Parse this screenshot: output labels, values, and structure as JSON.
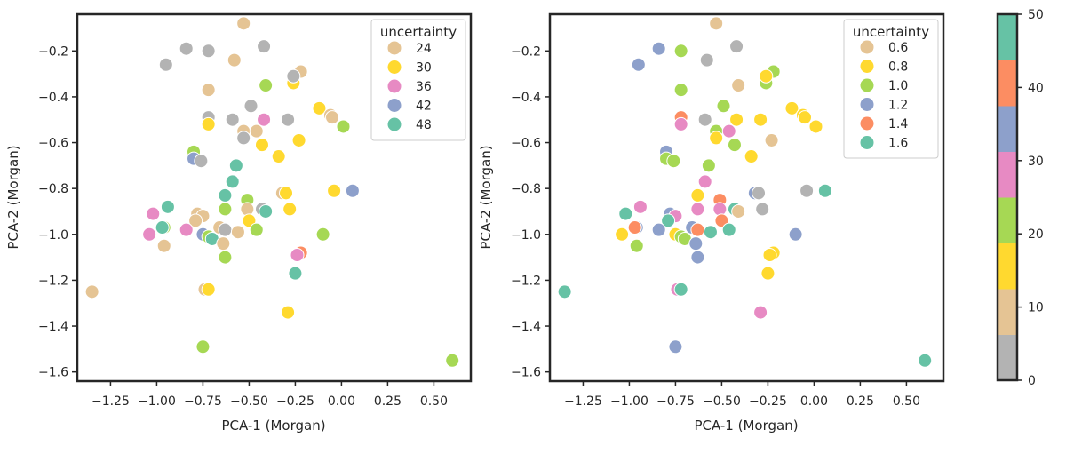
{
  "chart_data": [
    {
      "type": "scatter",
      "xlabel": "PCA-1 (Morgan)",
      "ylabel": "PCA-2 (Morgan)",
      "xlim": [
        -1.43,
        0.7
      ],
      "ylim": [
        -1.64,
        -0.04
      ],
      "xticks": [
        "-1.25",
        "-1.00",
        "-0.75",
        "-0.50",
        "-0.25",
        "0.00",
        "0.25",
        "0.50"
      ],
      "yticks": [
        "-0.2",
        "-0.4",
        "-0.6",
        "-0.8",
        "-1.0",
        "-1.2",
        "-1.4",
        "-1.6"
      ],
      "legend": {
        "title": "uncertainty",
        "entries": [
          {
            "label": "24",
            "color": "#e5c494"
          },
          {
            "label": "30",
            "color": "#ffd92f"
          },
          {
            "label": "36",
            "color": "#e78ac3"
          },
          {
            "label": "42",
            "color": "#8da0cb"
          },
          {
            "label": "48",
            "color": "#66c2a5"
          }
        ]
      }
    },
    {
      "type": "scatter",
      "xlabel": "PCA-1 (Morgan)",
      "ylabel": "PCA-2 (Morgan)",
      "xlim": [
        -1.43,
        0.7
      ],
      "ylim": [
        -1.64,
        -0.04
      ],
      "xticks": [
        "-1.25",
        "-1.00",
        "-0.75",
        "-0.50",
        "-0.25",
        "0.00",
        "0.25",
        "0.50"
      ],
      "yticks": [
        "-0.2",
        "-0.4",
        "-0.6",
        "-0.8",
        "-1.0",
        "-1.2",
        "-1.4",
        "-1.6"
      ],
      "legend": {
        "title": "uncertainty",
        "entries": [
          {
            "label": "0.6",
            "color": "#e5c494"
          },
          {
            "label": "0.8",
            "color": "#ffd92f"
          },
          {
            "label": "1.0",
            "color": "#a6d854"
          },
          {
            "label": "1.2",
            "color": "#8da0cb"
          },
          {
            "label": "1.4",
            "color": "#fc8d62"
          },
          {
            "label": "1.6",
            "color": "#66c2a5"
          }
        ]
      }
    },
    {
      "type": "colorbar",
      "ticks": [
        "0",
        "10",
        "20",
        "30",
        "40",
        "50"
      ],
      "range": [
        0,
        50
      ],
      "segments": [
        "#b3b3b3",
        "#e5c494",
        "#ffd92f",
        "#a6d854",
        "#e78ac3",
        "#8da0cb",
        "#fc8d62",
        "#66c2a5"
      ]
    }
  ],
  "points": [
    {
      "x": -0.53,
      "y": -0.08,
      "c1": "#e5c494",
      "c2": "#e5c494"
    },
    {
      "x": -0.84,
      "y": -0.19,
      "c1": "#b3b3b3",
      "c2": "#8da0cb"
    },
    {
      "x": -0.95,
      "y": -0.26,
      "c1": "#b3b3b3",
      "c2": "#8da0cb"
    },
    {
      "x": -0.72,
      "y": -0.2,
      "c1": "#b3b3b3",
      "c2": "#a6d854"
    },
    {
      "x": -0.58,
      "y": -0.24,
      "c1": "#e5c494",
      "c2": "#b3b3b3"
    },
    {
      "x": -0.42,
      "y": -0.18,
      "c1": "#b3b3b3",
      "c2": "#b3b3b3"
    },
    {
      "x": -0.22,
      "y": -0.29,
      "c1": "#e5c494",
      "c2": "#a6d854"
    },
    {
      "x": -0.26,
      "y": -0.34,
      "c1": "#ffd92f",
      "c2": "#a6d854"
    },
    {
      "x": -0.26,
      "y": -0.31,
      "c1": "#b3b3b3",
      "c2": "#ffd92f"
    },
    {
      "x": -0.41,
      "y": -0.35,
      "c1": "#a6d854",
      "c2": "#e5c494"
    },
    {
      "x": -0.72,
      "y": -0.37,
      "c1": "#e5c494",
      "c2": "#a6d854"
    },
    {
      "x": -0.49,
      "y": -0.44,
      "c1": "#b3b3b3",
      "c2": "#a6d854"
    },
    {
      "x": -0.12,
      "y": -0.45,
      "c1": "#ffd92f",
      "c2": "#ffd92f"
    },
    {
      "x": -0.06,
      "y": -0.48,
      "c1": "#e5c494",
      "c2": "#ffd92f"
    },
    {
      "x": -0.05,
      "y": -0.49,
      "c1": "#e5c494",
      "c2": "#ffd92f"
    },
    {
      "x": -0.72,
      "y": -0.49,
      "c1": "#b3b3b3",
      "c2": "#fc8d62"
    },
    {
      "x": -0.59,
      "y": -0.5,
      "c1": "#b3b3b3",
      "c2": "#b3b3b3"
    },
    {
      "x": -0.29,
      "y": -0.5,
      "c1": "#b3b3b3",
      "c2": "#ffd92f"
    },
    {
      "x": -0.42,
      "y": -0.5,
      "c1": "#e78ac3",
      "c2": "#ffd92f"
    },
    {
      "x": 0.01,
      "y": -0.53,
      "c1": "#a6d854",
      "c2": "#ffd92f"
    },
    {
      "x": -0.72,
      "y": -0.52,
      "c1": "#ffd92f",
      "c2": "#e78ac3"
    },
    {
      "x": -0.53,
      "y": -0.55,
      "c1": "#e5c494",
      "c2": "#a6d854"
    },
    {
      "x": -0.46,
      "y": -0.55,
      "c1": "#e5c494",
      "c2": "#e78ac3"
    },
    {
      "x": -0.53,
      "y": -0.58,
      "c1": "#b3b3b3",
      "c2": "#ffd92f"
    },
    {
      "x": -0.23,
      "y": -0.59,
      "c1": "#ffd92f",
      "c2": "#e5c494"
    },
    {
      "x": -0.43,
      "y": -0.61,
      "c1": "#ffd92f",
      "c2": "#a6d854"
    },
    {
      "x": -0.34,
      "y": -0.66,
      "c1": "#ffd92f",
      "c2": "#ffd92f"
    },
    {
      "x": -0.8,
      "y": -0.64,
      "c1": "#a6d854",
      "c2": "#8da0cb"
    },
    {
      "x": -0.8,
      "y": -0.67,
      "c1": "#8da0cb",
      "c2": "#a6d854"
    },
    {
      "x": -0.76,
      "y": -0.68,
      "c1": "#b3b3b3",
      "c2": "#a6d854"
    },
    {
      "x": -0.57,
      "y": -0.7,
      "c1": "#66c2a5",
      "c2": "#a6d854"
    },
    {
      "x": -0.59,
      "y": -0.77,
      "c1": "#66c2a5",
      "c2": "#e78ac3"
    },
    {
      "x": -0.63,
      "y": -0.83,
      "c1": "#66c2a5",
      "c2": "#ffd92f"
    },
    {
      "x": -0.04,
      "y": -0.81,
      "c1": "#ffd92f",
      "c2": "#b3b3b3"
    },
    {
      "x": 0.06,
      "y": -0.81,
      "c1": "#8da0cb",
      "c2": "#66c2a5"
    },
    {
      "x": -0.32,
      "y": -0.82,
      "c1": "#e5c494",
      "c2": "#8da0cb"
    },
    {
      "x": -0.3,
      "y": -0.82,
      "c1": "#ffd92f",
      "c2": "#b3b3b3"
    },
    {
      "x": -0.51,
      "y": -0.85,
      "c1": "#a6d854",
      "c2": "#fc8d62"
    },
    {
      "x": -0.63,
      "y": -0.89,
      "c1": "#a6d854",
      "c2": "#e78ac3"
    },
    {
      "x": -0.51,
      "y": -0.89,
      "c1": "#e5c494",
      "c2": "#e78ac3"
    },
    {
      "x": -0.43,
      "y": -0.89,
      "c1": "#b3b3b3",
      "c2": "#66c2a5"
    },
    {
      "x": -0.41,
      "y": -0.9,
      "c1": "#66c2a5",
      "c2": "#e5c494"
    },
    {
      "x": -0.28,
      "y": -0.89,
      "c1": "#ffd92f",
      "c2": "#b3b3b3"
    },
    {
      "x": -0.94,
      "y": -0.88,
      "c1": "#66c2a5",
      "c2": "#e78ac3"
    },
    {
      "x": -1.02,
      "y": -0.91,
      "c1": "#e78ac3",
      "c2": "#66c2a5"
    },
    {
      "x": -0.78,
      "y": -0.91,
      "c1": "#e5c494",
      "c2": "#8da0cb"
    },
    {
      "x": -0.75,
      "y": -0.92,
      "c1": "#e5c494",
      "c2": "#e78ac3"
    },
    {
      "x": -0.79,
      "y": -0.94,
      "c1": "#e5c494",
      "c2": "#66c2a5"
    },
    {
      "x": -0.5,
      "y": -0.94,
      "c1": "#ffd92f",
      "c2": "#fc8d62"
    },
    {
      "x": -0.66,
      "y": -0.97,
      "c1": "#e5c494",
      "c2": "#8da0cb"
    },
    {
      "x": -0.96,
      "y": -0.97,
      "c1": "#a6d854",
      "c2": "#8da0cb"
    },
    {
      "x": -0.97,
      "y": -0.97,
      "c1": "#66c2a5",
      "c2": "#fc8d62"
    },
    {
      "x": -0.84,
      "y": -0.98,
      "c1": "#e78ac3",
      "c2": "#8da0cb"
    },
    {
      "x": -1.04,
      "y": -1.0,
      "c1": "#e78ac3",
      "c2": "#ffd92f"
    },
    {
      "x": -0.75,
      "y": -1.0,
      "c1": "#8da0cb",
      "c2": "#ffd92f"
    },
    {
      "x": -0.63,
      "y": -0.98,
      "c1": "#b3b3b3",
      "c2": "#fc8d62"
    },
    {
      "x": -0.56,
      "y": -0.99,
      "c1": "#e5c494",
      "c2": "#66c2a5"
    },
    {
      "x": -0.46,
      "y": -0.98,
      "c1": "#a6d854",
      "c2": "#66c2a5"
    },
    {
      "x": -0.1,
      "y": -1.0,
      "c1": "#a6d854",
      "c2": "#8da0cb"
    },
    {
      "x": -0.72,
      "y": -1.01,
      "c1": "#a6d854",
      "c2": "#a6d854"
    },
    {
      "x": -0.7,
      "y": -1.02,
      "c1": "#66c2a5",
      "c2": "#a6d854"
    },
    {
      "x": -0.64,
      "y": -1.04,
      "c1": "#e5c494",
      "c2": "#8da0cb"
    },
    {
      "x": -0.96,
      "y": -1.05,
      "c1": "#e5c494",
      "c2": "#a6d854"
    },
    {
      "x": -0.22,
      "y": -1.08,
      "c1": "#fc8d62",
      "c2": "#ffd92f"
    },
    {
      "x": -0.24,
      "y": -1.09,
      "c1": "#e78ac3",
      "c2": "#ffd92f"
    },
    {
      "x": -0.63,
      "y": -1.1,
      "c1": "#a6d854",
      "c2": "#8da0cb"
    },
    {
      "x": -0.25,
      "y": -1.17,
      "c1": "#66c2a5",
      "c2": "#ffd92f"
    },
    {
      "x": -1.35,
      "y": -1.25,
      "c1": "#e5c494",
      "c2": "#66c2a5"
    },
    {
      "x": -0.74,
      "y": -1.24,
      "c1": "#e5c494",
      "c2": "#e78ac3"
    },
    {
      "x": -0.72,
      "y": -1.24,
      "c1": "#ffd92f",
      "c2": "#66c2a5"
    },
    {
      "x": -0.29,
      "y": -1.34,
      "c1": "#ffd92f",
      "c2": "#e78ac3"
    },
    {
      "x": -0.75,
      "y": -1.49,
      "c1": "#a6d854",
      "c2": "#8da0cb"
    },
    {
      "x": 0.6,
      "y": -1.55,
      "c1": "#a6d854",
      "c2": "#66c2a5"
    }
  ]
}
